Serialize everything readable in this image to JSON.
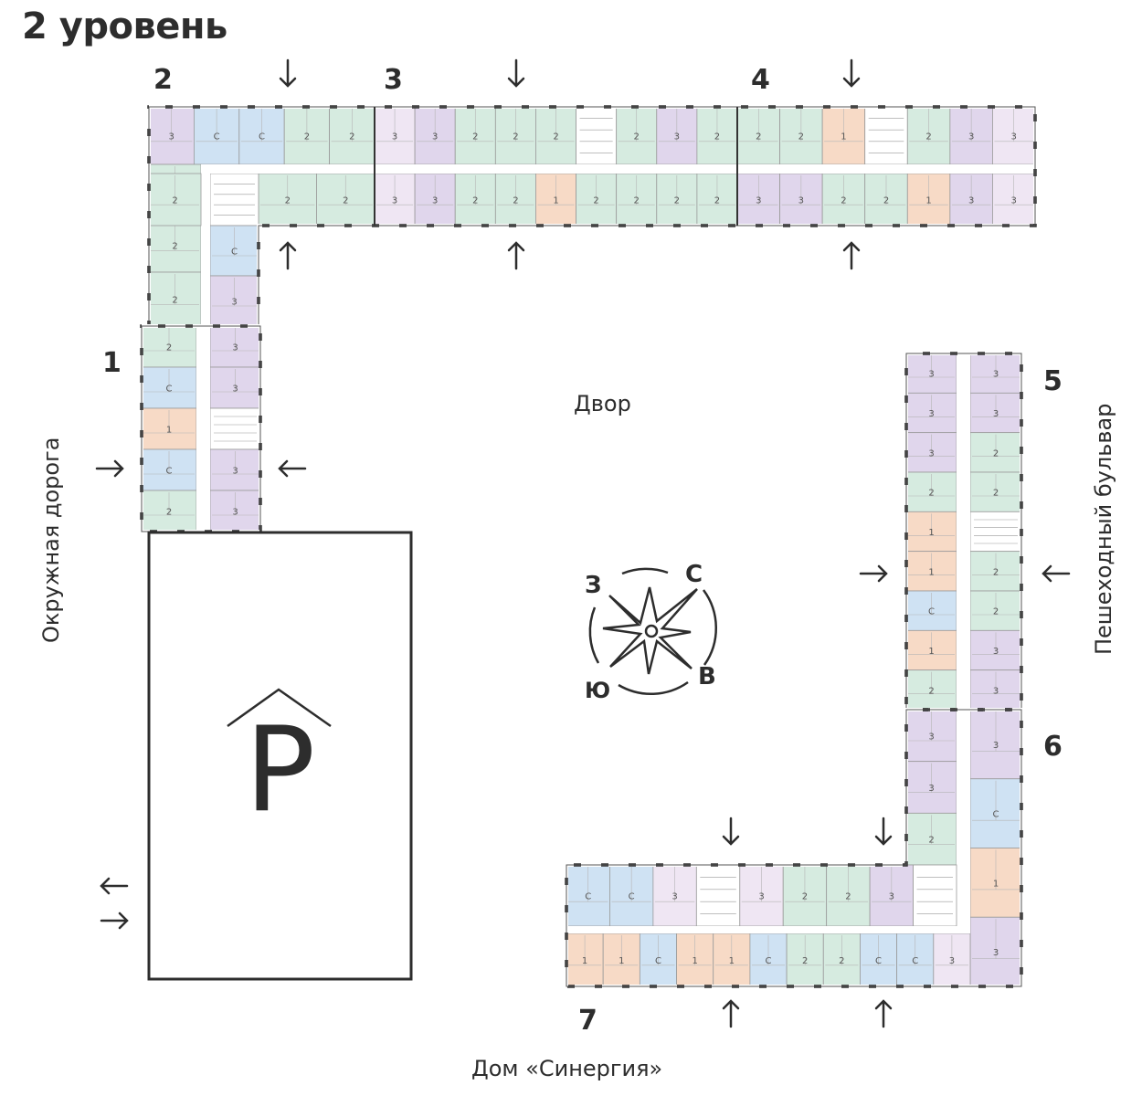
{
  "title": "2 уровень",
  "sections": [
    {
      "id": "1",
      "label": "1"
    },
    {
      "id": "2",
      "label": "2"
    },
    {
      "id": "3",
      "label": "3"
    },
    {
      "id": "4",
      "label": "4"
    },
    {
      "id": "5",
      "label": "5"
    },
    {
      "id": "6",
      "label": "6"
    },
    {
      "id": "7",
      "label": "7"
    }
  ],
  "labels": {
    "yard": "Двор",
    "road_west": "Окружная дорога",
    "boulevard_east": "Пешеходный бульвар",
    "house_south": "Дом «Синергия»",
    "parking": "P"
  },
  "compass": {
    "north": "С",
    "east": "В",
    "south": "Ю",
    "west": "З"
  },
  "apartment_colors": {
    "С": "#cfe2f3",
    "1": "#f7dac6",
    "2": "#d6ebe0",
    "3": "#e0d6ec",
    "3L": "#efe6f3"
  },
  "layout_types": {
    "s2_top": [
      "3",
      "С",
      "С",
      "2",
      "2"
    ],
    "s2_bottom": [
      "core",
      "2",
      "2"
    ],
    "s2_left": [
      "2",
      "2",
      "2"
    ],
    "s2_right": [
      "С",
      "3"
    ],
    "s3_top": [
      "3L",
      "3",
      "2",
      "2",
      "2",
      "core",
      "2",
      "3",
      "2"
    ],
    "s3_bottom": [
      "3L",
      "3",
      "2",
      "2",
      "1",
      "2",
      "2",
      "2",
      "2"
    ],
    "s4_top": [
      "2",
      "2",
      "1",
      "core",
      "2",
      "3",
      "3L"
    ],
    "s4_bottom": [
      "3",
      "3",
      "2",
      "2",
      "1",
      "3",
      "3L"
    ],
    "s1_left": [
      "2",
      "С",
      "1",
      "С",
      "2"
    ],
    "s1_right": [
      "3",
      "3",
      "core",
      "3",
      "3"
    ],
    "s5_left": [
      "3",
      "3",
      "3",
      "2",
      "1",
      "1",
      "С",
      "1",
      "2"
    ],
    "s5_right": [
      "3",
      "3",
      "2",
      "2",
      "core",
      "2",
      "2",
      "3",
      "3"
    ],
    "s6_left": [
      "3",
      "3",
      "2"
    ],
    "s6_right": [
      "3",
      "С",
      "1",
      "3"
    ],
    "s7_top": [
      "С",
      "С",
      "3L",
      "core",
      "3L",
      "2",
      "2",
      "3",
      "core"
    ],
    "s7_bottom": [
      "1",
      "1",
      "С",
      "1",
      "1",
      "С",
      "2",
      "2",
      "С",
      "С",
      "3L"
    ]
  }
}
